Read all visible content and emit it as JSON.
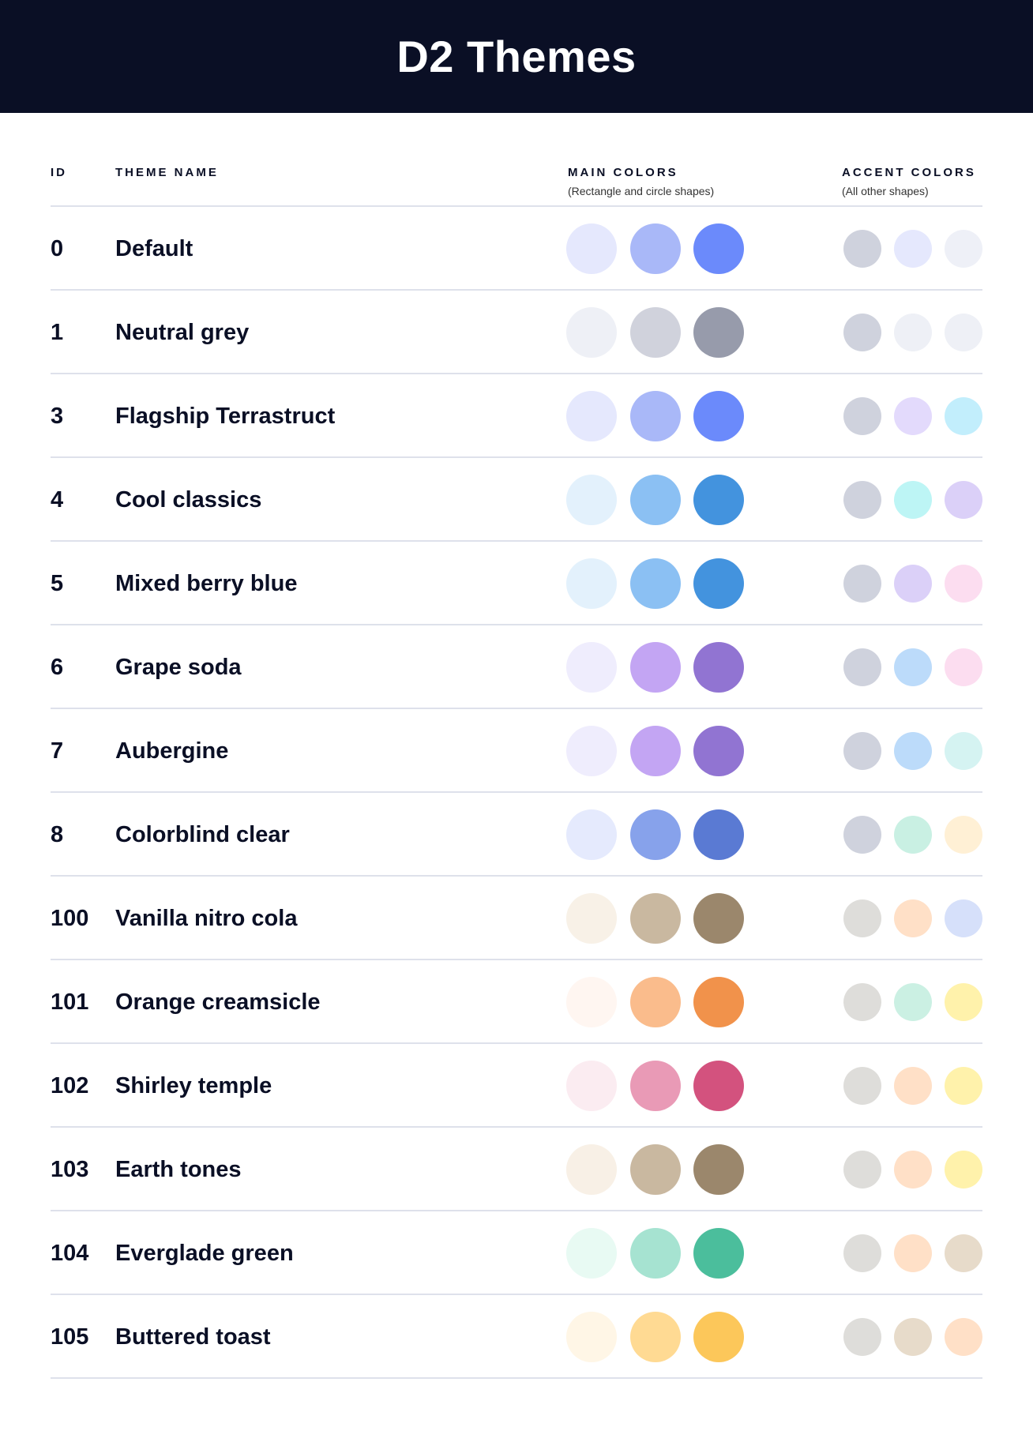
{
  "title": "D2 Themes",
  "columns": {
    "id": "ID",
    "name": "THEME NAME",
    "main": "MAIN COLORS",
    "main_sub": "(Rectangle and circle shapes)",
    "accent": "ACCENT COLORS",
    "accent_sub": "(All other shapes)"
  },
  "themes": [
    {
      "id": "0",
      "name": "Default",
      "main": [
        "#E5E8FD",
        "#A9B8F8",
        "#6B8AFB"
      ],
      "accent": [
        "#CFD2DD",
        "#E5E8FD",
        "#EEF0F7"
      ]
    },
    {
      "id": "1",
      "name": "Neutral grey",
      "main": [
        "#EEF0F6",
        "#D0D2DC",
        "#979BAB"
      ],
      "accent": [
        "#CFD2DD",
        "#EEF0F6",
        "#EEF0F6"
      ]
    },
    {
      "id": "3",
      "name": "Flagship Terrastruct",
      "main": [
        "#E5E8FD",
        "#A9B8F8",
        "#6B8AFB"
      ],
      "accent": [
        "#CFD2DD",
        "#E3DAFC",
        "#C2EEFC"
      ]
    },
    {
      "id": "4",
      "name": "Cool classics",
      "main": [
        "#E3F1FC",
        "#8BC0F3",
        "#4393DE"
      ],
      "accent": [
        "#CFD2DD",
        "#BDF5F5",
        "#DBD0F8"
      ]
    },
    {
      "id": "5",
      "name": "Mixed berry blue",
      "main": [
        "#E3F1FC",
        "#8BC0F3",
        "#4393DE"
      ],
      "accent": [
        "#CFD2DD",
        "#DBD0F8",
        "#FCDDF0"
      ]
    },
    {
      "id": "6",
      "name": "Grape soda",
      "main": [
        "#EFEDFD",
        "#C3A5F3",
        "#9174D2"
      ],
      "accent": [
        "#CFD2DD",
        "#BCDBFA",
        "#FCDDF0"
      ]
    },
    {
      "id": "7",
      "name": "Aubergine",
      "main": [
        "#EFEDFD",
        "#C3A5F3",
        "#9174D2"
      ],
      "accent": [
        "#CFD2DD",
        "#BCDBFA",
        "#D5F3F2"
      ]
    },
    {
      "id": "8",
      "name": "Colorblind clear",
      "main": [
        "#E5EAFD",
        "#87A2EB",
        "#5A7AD3"
      ],
      "accent": [
        "#CFD2DD",
        "#C9F0E3",
        "#FFF0D5"
      ]
    },
    {
      "id": "100",
      "name": "Vanilla nitro cola",
      "main": [
        "#F8F1E7",
        "#C9B8A0",
        "#9B876C"
      ],
      "accent": [
        "#DEDDDA",
        "#FFE0C7",
        "#D6E0FA"
      ]
    },
    {
      "id": "101",
      "name": "Orange creamsicle",
      "main": [
        "#FFF6F1",
        "#FABC8C",
        "#F1924B"
      ],
      "accent": [
        "#DEDDDA",
        "#CBF0E3",
        "#FFF2AB"
      ]
    },
    {
      "id": "102",
      "name": "Shirley temple",
      "main": [
        "#FBECF1",
        "#E99AB6",
        "#D3527E"
      ],
      "accent": [
        "#DEDDDA",
        "#FFE0C7",
        "#FFF2AB"
      ]
    },
    {
      "id": "103",
      "name": "Earth tones",
      "main": [
        "#F8F0E6",
        "#C9B8A0",
        "#9B876C"
      ],
      "accent": [
        "#DEDDDA",
        "#FFE0C7",
        "#FFF2AB"
      ]
    },
    {
      "id": "104",
      "name": "Everglade green",
      "main": [
        "#E8FAF3",
        "#A6E3D1",
        "#4BBE9C"
      ],
      "accent": [
        "#DEDDDA",
        "#FFE0C7",
        "#E7DBCA"
      ]
    },
    {
      "id": "105",
      "name": "Buttered toast",
      "main": [
        "#FFF6E6",
        "#FFDA93",
        "#FCC75A"
      ],
      "accent": [
        "#DEDDDA",
        "#E7DBCA",
        "#FFE0C7"
      ]
    }
  ]
}
